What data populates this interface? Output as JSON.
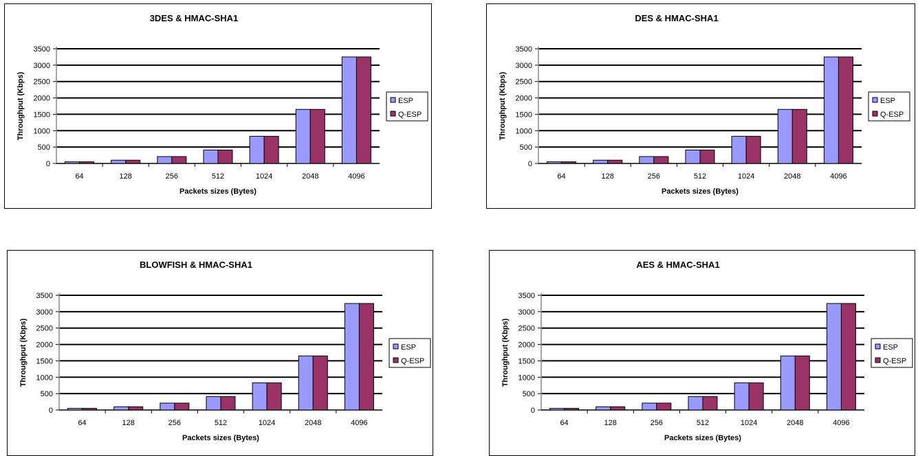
{
  "colors": {
    "esp": "#9999ff",
    "qesp": "#993366"
  },
  "chart_data": [
    {
      "type": "bar",
      "title": "3DES & HMAC-SHA1",
      "xlabel": "Packets sizes (Bytes)",
      "ylabel": "Throughput (Kbps)",
      "categories": [
        "64",
        "128",
        "256",
        "512",
        "1024",
        "2048",
        "4096"
      ],
      "series": [
        {
          "name": "ESP",
          "values": [
            50,
            100,
            210,
            410,
            830,
            1650,
            3250
          ]
        },
        {
          "name": "Q-ESP",
          "values": [
            50,
            100,
            210,
            410,
            830,
            1650,
            3250
          ]
        }
      ],
      "ylim": [
        0,
        3500
      ],
      "yticks": [
        "0",
        "500",
        "1000",
        "1500",
        "2000",
        "2500",
        "3000",
        "3500"
      ],
      "grid": true,
      "legend": "right"
    },
    {
      "type": "bar",
      "title": "DES & HMAC-SHA1",
      "xlabel": "Packets sizes (Bytes)",
      "ylabel": "Throughput (Kbps)",
      "categories": [
        "64",
        "128",
        "256",
        "512",
        "1024",
        "2048",
        "4096"
      ],
      "series": [
        {
          "name": "ESP",
          "values": [
            50,
            100,
            210,
            410,
            830,
            1650,
            3250
          ]
        },
        {
          "name": "Q-ESP",
          "values": [
            50,
            100,
            210,
            410,
            830,
            1650,
            3250
          ]
        }
      ],
      "ylim": [
        0,
        3500
      ],
      "yticks": [
        "0",
        "500",
        "1000",
        "1500",
        "2000",
        "2500",
        "3000",
        "3500"
      ],
      "grid": true,
      "legend": "right"
    },
    {
      "type": "bar",
      "title": "BLOWFISH & HMAC-SHA1",
      "xlabel": "Packets sizes (Bytes)",
      "ylabel": "Throughput (Kbps)",
      "categories": [
        "64",
        "128",
        "256",
        "512",
        "1024",
        "2048",
        "4096"
      ],
      "series": [
        {
          "name": "ESP",
          "values": [
            50,
            100,
            210,
            410,
            830,
            1650,
            3250
          ]
        },
        {
          "name": "Q-ESP",
          "values": [
            50,
            100,
            210,
            410,
            830,
            1650,
            3250
          ]
        }
      ],
      "ylim": [
        0,
        3500
      ],
      "yticks": [
        "0",
        "500",
        "1000",
        "1500",
        "2000",
        "2500",
        "3000",
        "3500"
      ],
      "grid": true,
      "legend": "right"
    },
    {
      "type": "bar",
      "title": "AES & HMAC-SHA1",
      "xlabel": "Packets sizes (Bytes)",
      "ylabel": "Throughput (Kbps)",
      "categories": [
        "64",
        "128",
        "256",
        "512",
        "1024",
        "2048",
        "4096"
      ],
      "series": [
        {
          "name": "ESP",
          "values": [
            50,
            100,
            210,
            410,
            830,
            1650,
            3250
          ]
        },
        {
          "name": "Q-ESP",
          "values": [
            50,
            100,
            210,
            410,
            830,
            1650,
            3250
          ]
        }
      ],
      "ylim": [
        0,
        3500
      ],
      "yticks": [
        "0",
        "500",
        "1000",
        "1500",
        "2000",
        "2500",
        "3000",
        "3500"
      ],
      "grid": true,
      "legend": "right"
    }
  ]
}
